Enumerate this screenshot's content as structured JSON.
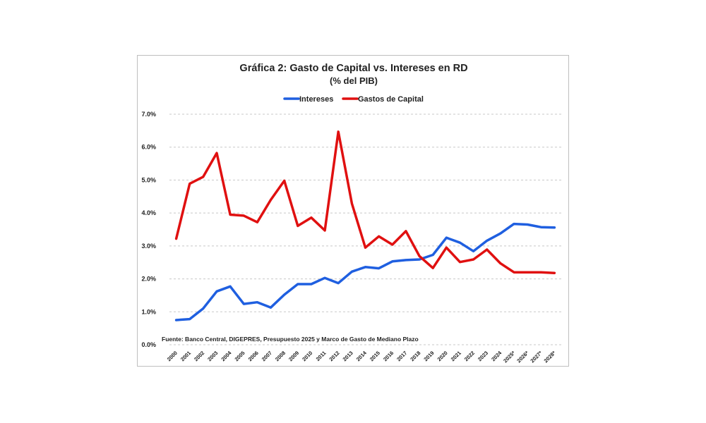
{
  "chart_data": {
    "type": "line",
    "title": "Gráfica 2: Gasto de Capital vs. Intereses en RD",
    "subtitle": "(% del PIB)",
    "note": "Fuente: Banco Central, DIGEPRES, Presupuesto 2025 y Marco de Gasto de Mediano Plazo",
    "categories": [
      "2000",
      "2001",
      "2002",
      "2003",
      "2004",
      "2005",
      "2006",
      "2007",
      "2008",
      "2009",
      "2010",
      "2011",
      "2012",
      "2013",
      "2014",
      "2015",
      "2016",
      "2017",
      "2018",
      "2019",
      "2020",
      "2021",
      "2022",
      "2023",
      "2024",
      "2025*",
      "2026*",
      "2027*",
      "2028*"
    ],
    "ylim": [
      0,
      7
    ],
    "yticks": [
      "0.0%",
      "1.0%",
      "2.0%",
      "3.0%",
      "4.0%",
      "5.0%",
      "6.0%",
      "7.0%"
    ],
    "grid": true,
    "legend_position": "top",
    "series": [
      {
        "name": "Intereses",
        "color": "#1f5fe0",
        "values": [
          0.75,
          0.78,
          1.1,
          1.62,
          1.77,
          1.24,
          1.29,
          1.13,
          1.52,
          1.84,
          1.84,
          2.03,
          1.87,
          2.22,
          2.36,
          2.32,
          2.53,
          2.57,
          2.59,
          2.73,
          3.25,
          3.1,
          2.84,
          3.16,
          3.38,
          3.67,
          3.65,
          3.57,
          3.56
        ]
      },
      {
        "name": "Gastos de Capital",
        "color": "#e01010",
        "values": [
          3.22,
          4.89,
          5.1,
          5.82,
          3.95,
          3.92,
          3.72,
          4.4,
          4.98,
          3.61,
          3.86,
          3.47,
          6.47,
          4.29,
          2.95,
          3.29,
          3.04,
          3.45,
          2.69,
          2.33,
          2.95,
          2.51,
          2.59,
          2.89,
          2.47,
          2.2,
          2.2,
          2.2,
          2.18
        ]
      }
    ]
  }
}
